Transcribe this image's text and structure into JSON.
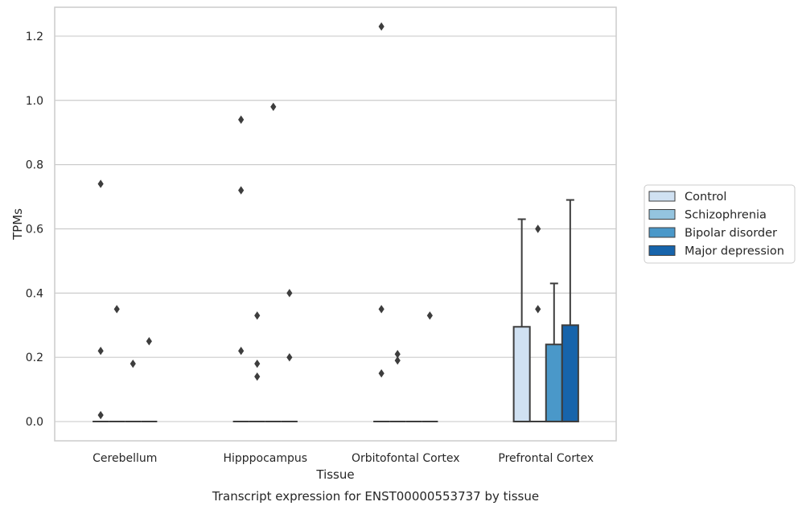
{
  "chart_data": {
    "type": "boxplot",
    "title": "Transcript expression for ENST00000553737 by tissue",
    "xlabel": "Tissue",
    "ylabel": "TPMs",
    "ylim": [
      -0.06,
      1.29
    ],
    "yticks": [
      0.0,
      0.2,
      0.4,
      0.6,
      0.8,
      1.0,
      1.2
    ],
    "ytick_labels": [
      "0.0",
      "0.2",
      "0.4",
      "0.6",
      "0.8",
      "1.0",
      "1.2"
    ],
    "grid": "horizontal",
    "legend_position": "right",
    "categories": [
      "Cerebellum",
      "Hipppocampus",
      "Orbitofontal Cortex",
      "Prefrontal Cortex"
    ],
    "series": [
      {
        "name": "Control",
        "color": "#d0e1f2",
        "boxes": [
          {
            "q1": 0,
            "median": 0,
            "q3": 0,
            "whisker_low": 0,
            "whisker_high": 0,
            "outliers": [
              0.74,
              0.22,
              0.02
            ]
          },
          {
            "q1": 0,
            "median": 0,
            "q3": 0,
            "whisker_low": 0,
            "whisker_high": 0,
            "outliers": [
              0.94,
              0.72,
              0.22
            ]
          },
          {
            "q1": 0,
            "median": 0,
            "q3": 0,
            "whisker_low": 0,
            "whisker_high": 0,
            "outliers": [
              1.23,
              0.35,
              0.15
            ]
          },
          {
            "q1": 0,
            "median": 0,
            "q3": 0.295,
            "whisker_low": 0,
            "whisker_high": 0.63,
            "outliers": []
          }
        ]
      },
      {
        "name": "Schizophrenia",
        "color": "#94c4df",
        "boxes": [
          {
            "q1": 0,
            "median": 0,
            "q3": 0,
            "whisker_low": 0,
            "whisker_high": 0,
            "outliers": [
              0.35
            ]
          },
          {
            "q1": 0,
            "median": 0,
            "q3": 0,
            "whisker_low": 0,
            "whisker_high": 0,
            "outliers": [
              0.33,
              0.18,
              0.14
            ]
          },
          {
            "q1": 0,
            "median": 0,
            "q3": 0,
            "whisker_low": 0,
            "whisker_high": 0,
            "outliers": [
              0.21,
              0.19
            ]
          },
          {
            "q1": 0,
            "median": 0,
            "q3": 0,
            "whisker_low": 0,
            "whisker_high": 0,
            "outliers": [
              0.6,
              0.35
            ]
          }
        ]
      },
      {
        "name": "Bipolar disorder",
        "color": "#4a98c9",
        "boxes": [
          {
            "q1": 0,
            "median": 0,
            "q3": 0,
            "whisker_low": 0,
            "whisker_high": 0,
            "outliers": [
              0.18
            ]
          },
          {
            "q1": 0,
            "median": 0,
            "q3": 0,
            "whisker_low": 0,
            "whisker_high": 0,
            "outliers": [
              0.98
            ]
          },
          {
            "q1": 0,
            "median": 0,
            "q3": 0,
            "whisker_low": 0,
            "whisker_high": 0,
            "outliers": []
          },
          {
            "q1": 0,
            "median": 0,
            "q3": 0.24,
            "whisker_low": 0,
            "whisker_high": 0.43,
            "outliers": []
          }
        ]
      },
      {
        "name": "Major depression",
        "color": "#1764ab",
        "boxes": [
          {
            "q1": 0,
            "median": 0,
            "q3": 0,
            "whisker_low": 0,
            "whisker_high": 0,
            "outliers": [
              0.25
            ]
          },
          {
            "q1": 0,
            "median": 0,
            "q3": 0,
            "whisker_low": 0,
            "whisker_high": 0,
            "outliers": [
              0.4,
              0.2
            ]
          },
          {
            "q1": 0,
            "median": 0,
            "q3": 0,
            "whisker_low": 0,
            "whisker_high": 0,
            "outliers": [
              0.33
            ]
          },
          {
            "q1": 0,
            "median": 0,
            "q3": 0.3,
            "whisker_low": 0,
            "whisker_high": 0.69,
            "outliers": []
          }
        ]
      }
    ]
  }
}
